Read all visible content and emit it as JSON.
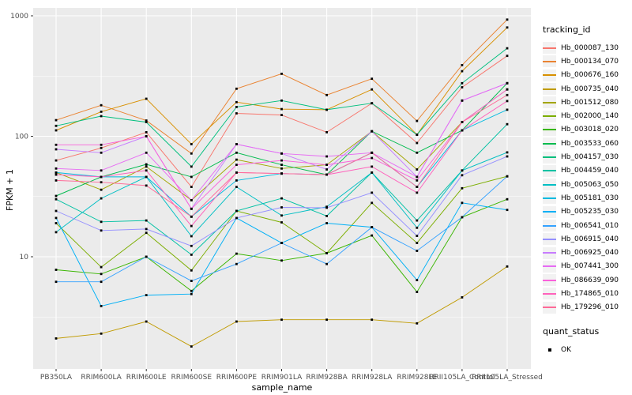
{
  "chart_data": {
    "type": "line",
    "title": "",
    "xlabel": "sample_name",
    "ylabel": "FPKM + 1",
    "y_scale": "log10",
    "ylim": [
      1.17,
      1160
    ],
    "y_ticks": [
      10,
      100,
      1000
    ],
    "y_minor_ticks": [
      3.162,
      31.62,
      316.2
    ],
    "grid": true,
    "legend_title": "tracking_id",
    "legend_position": "right",
    "panel_bg": "#EBEBEB",
    "grid_color": "#FFFFFF",
    "tick_label_color": "#4D4D4D",
    "point_color": "#000000",
    "x_categories": [
      "PB350LA",
      "RRIM600LA",
      "RRIM600LE",
      "RRIM600SE",
      "RRIM600PE",
      "RRIM901LA",
      "RRIM928BA",
      "RRIM928LA",
      "RRIM928LE",
      "RRII105LA_Control",
      "RRII105LA_Stressed"
    ],
    "series": [
      {
        "name": "Hb_000087_130",
        "color": "#F8766D",
        "values": [
          63,
          80,
          108,
          38,
          155,
          150,
          108,
          188,
          88,
          255,
          465
        ]
      },
      {
        "name": "Hb_000134_070",
        "color": "#EA8331",
        "values": [
          136,
          181,
          135,
          72,
          248,
          330,
          220,
          300,
          134,
          390,
          930
        ]
      },
      {
        "name": "Hb_000676_160",
        "color": "#D89000",
        "values": [
          112,
          160,
          205,
          86,
          192,
          168,
          166,
          245,
          103,
          347,
          800
        ]
      },
      {
        "name": "Hb_000735_040",
        "color": "#C09B00",
        "values": [
          2.1,
          2.3,
          2.9,
          1.8,
          2.9,
          3.0,
          3.0,
          3.0,
          2.8,
          4.6,
          8.3
        ]
      },
      {
        "name": "Hb_001512_080",
        "color": "#A3A500",
        "values": [
          50,
          36,
          56,
          29.5,
          64,
          54,
          58,
          110,
          53,
          131,
          245
        ]
      },
      {
        "name": "Hb_002000_140",
        "color": "#7CAE00",
        "values": [
          19,
          8.2,
          15.8,
          7.7,
          24,
          19.3,
          10.7,
          28,
          13,
          37,
          46.5
        ]
      },
      {
        "name": "Hb_003018_020",
        "color": "#39B600",
        "values": [
          7.8,
          7.2,
          10,
          5.2,
          10.6,
          9.3,
          10.7,
          15,
          5.1,
          21.3,
          30
        ]
      },
      {
        "name": "Hb_003533_060",
        "color": "#00BB4E",
        "values": [
          32,
          46,
          58.5,
          46,
          73,
          58,
          48,
          110,
          73,
          112,
          276
        ]
      },
      {
        "name": "Hb_004157_030",
        "color": "#00BF7D",
        "values": [
          122,
          147,
          131,
          56,
          175,
          198,
          166,
          188,
          103,
          276,
          538
        ]
      },
      {
        "name": "Hb_004459_040",
        "color": "#00C1A3",
        "values": [
          30,
          19.5,
          20,
          10.4,
          24,
          30.5,
          21.8,
          50,
          20,
          52,
          126
        ]
      },
      {
        "name": "Hb_005063_050",
        "color": "#00BFC4",
        "values": [
          16,
          30.5,
          46,
          14.8,
          38,
          22,
          26,
          50,
          17.4,
          52,
          73.5
        ]
      },
      {
        "name": "Hb_005181_030",
        "color": "#00BAE0",
        "values": [
          50,
          46,
          46,
          21.5,
          43,
          49,
          48,
          73,
          38,
          112,
          166
        ]
      },
      {
        "name": "Hb_005235_030",
        "color": "#00B0F6",
        "values": [
          21,
          3.9,
          4.8,
          4.9,
          21,
          13,
          19,
          17.6,
          6.4,
          28,
          24.5
        ]
      },
      {
        "name": "Hb_006541_010",
        "color": "#35A2FF",
        "values": [
          6.2,
          6.2,
          10,
          6.3,
          8.7,
          13,
          8.7,
          17.6,
          11.2,
          21.3,
          46.5
        ]
      },
      {
        "name": "Hb_006915_040",
        "color": "#9590FF",
        "values": [
          24,
          16.5,
          17,
          12.3,
          21,
          25.7,
          25.5,
          34,
          14.9,
          47.5,
          68
        ]
      },
      {
        "name": "Hb_006925_040",
        "color": "#C77CFF",
        "values": [
          78,
          73,
          100,
          25,
          86,
          72,
          53,
          110,
          46,
          198,
          276
        ]
      },
      {
        "name": "Hb_007441_300",
        "color": "#E76BF3",
        "values": [
          54,
          52,
          73,
          29.5,
          86,
          72,
          68,
          73,
          46,
          198,
          276
        ]
      },
      {
        "name": "Hb_086639_090",
        "color": "#FA62DB",
        "values": [
          85,
          85,
          100,
          25,
          58,
          63,
          58,
          66,
          43,
          131,
          245
        ]
      },
      {
        "name": "Hb_174865_010",
        "color": "#FF62BC",
        "values": [
          48,
          46,
          52,
          18,
          50,
          49,
          48,
          56,
          34,
          112,
          196
        ]
      },
      {
        "name": "Hb_179296_010",
        "color": "#FF6A98",
        "values": [
          43,
          41.5,
          39,
          21.5,
          50,
          49,
          48,
          73,
          38,
          131,
          220
        ]
      }
    ],
    "quant_status": {
      "title": "quant_status",
      "items": [
        "OK"
      ]
    }
  }
}
